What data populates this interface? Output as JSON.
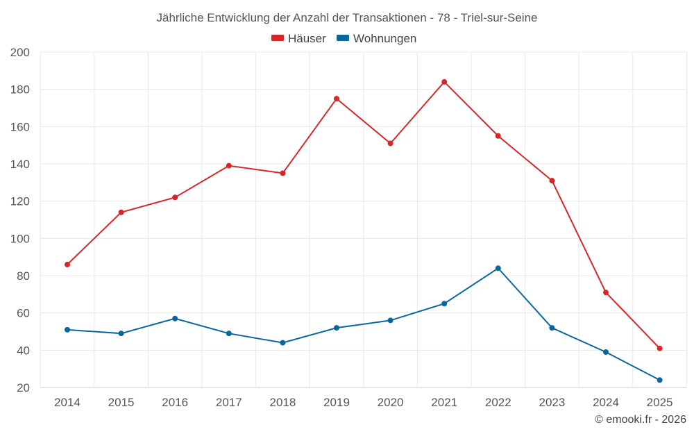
{
  "chart_data": {
    "type": "line",
    "title": "Jährliche Entwicklung der Anzahl der Transaktionen - 78 - Triel-sur-Seine",
    "categories": [
      "2014",
      "2015",
      "2016",
      "2017",
      "2018",
      "2019",
      "2020",
      "2021",
      "2022",
      "2023",
      "2024",
      "2025"
    ],
    "series": [
      {
        "name": "Häuser",
        "color": "#d62728",
        "values": [
          86,
          114,
          122,
          139,
          135,
          175,
          151,
          184,
          155,
          131,
          71,
          41
        ]
      },
      {
        "name": "Wohnungen",
        "color": "#08679c",
        "values": [
          51,
          49,
          57,
          49,
          44,
          52,
          56,
          65,
          84,
          52,
          39,
          24
        ]
      }
    ],
    "ylim": [
      20,
      200
    ],
    "yticks": [
      20,
      40,
      60,
      80,
      100,
      120,
      140,
      160,
      180,
      200
    ],
    "xlabel": "",
    "ylabel": "",
    "grid": true,
    "legend": "top-center"
  },
  "credit": "© emooki.fr - 2026"
}
